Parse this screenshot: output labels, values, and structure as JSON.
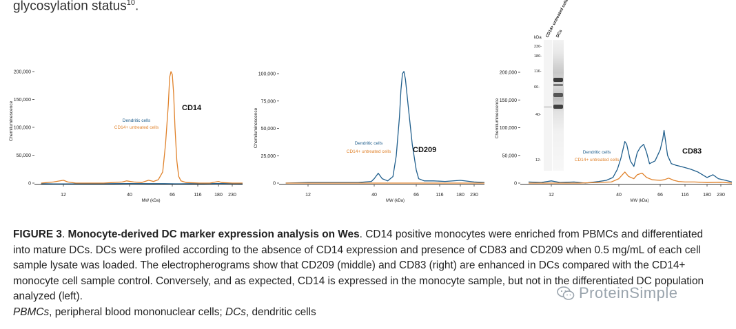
{
  "lead_text": {
    "text": "glycosylation status",
    "ref": "10",
    "tail": "."
  },
  "caption": {
    "fig_label": "FIGURE 3",
    "sep": ". ",
    "title": "Monocyte-derived DC marker expression analysis on Wes",
    "body": ". CD14 positive monocytes were enriched from PBMCs and differentiated into mature DCs. DCs were profiled according to the absence of CD14 expression and presence of CD83 and CD209 when 0.5 mg/mL of each cell sample lysate was loaded. The electropherograms show that CD209 (middle) and CD83 (right) are enhanced in DCs compared with the CD14+ monocyte cell sample control. Conversely, and as expected, CD14 is expressed in the monocyte sample, but not in the differentiated DC population analyzed (left).",
    "abbr1_term": "PBMCs",
    "abbr1_def": ", peripheral blood mononuclear cells; ",
    "abbr2_term": "DCs",
    "abbr2_def": ", dendritic cells"
  },
  "watermark": {
    "text": "ProteinSimple",
    "icon": "wechat-icon"
  },
  "colors": {
    "dendritic": "#1f5e8c",
    "cd14_untreated": "#e0822b",
    "axis": "#333333"
  },
  "chart_data": [
    {
      "type": "line",
      "ylabel": "Chemiluminescence",
      "xlabel": "MW (kDa)",
      "xticks": [
        "12",
        "40",
        "66",
        "116",
        "180",
        "230"
      ],
      "yticks": [
        "0",
        "50,000",
        "100,000",
        "150,000",
        "200,000"
      ],
      "ylim": [
        0,
        210000
      ],
      "marker_label": "CD14",
      "legend": [
        "Dendritic cells",
        "CD14+ untreated cells"
      ],
      "series": [
        {
          "name": "Dendritic cells",
          "color": "#1f5e8c",
          "points": [
            [
              8,
              -1000
            ],
            [
              10,
              -1500
            ],
            [
              12,
              -1500
            ],
            [
              20,
              -1200
            ],
            [
              30,
              -1000
            ],
            [
              40,
              -800
            ],
            [
              50,
              -1000
            ],
            [
              60,
              -1000
            ],
            [
              70,
              -1200
            ],
            [
              80,
              -1200
            ],
            [
              100,
              -1000
            ],
            [
              130,
              -1000
            ],
            [
              180,
              -800
            ],
            [
              230,
              -900
            ],
            [
              280,
              -1000
            ]
          ]
        },
        {
          "name": "CD14+ untreated cells",
          "color": "#e0822b",
          "points": [
            [
              8,
              0
            ],
            [
              10,
              2000
            ],
            [
              12,
              5000
            ],
            [
              13,
              2000
            ],
            [
              15,
              0
            ],
            [
              25,
              0
            ],
            [
              35,
              2000
            ],
            [
              38,
              4000
            ],
            [
              42,
              2000
            ],
            [
              46,
              1000
            ],
            [
              50,
              5000
            ],
            [
              53,
              3000
            ],
            [
              56,
              6000
            ],
            [
              59,
              20000
            ],
            [
              61,
              70000
            ],
            [
              63,
              140000
            ],
            [
              64,
              190000
            ],
            [
              65,
              200000
            ],
            [
              66,
              195000
            ],
            [
              68,
              160000
            ],
            [
              70,
              100000
            ],
            [
              73,
              40000
            ],
            [
              76,
              12000
            ],
            [
              80,
              4000
            ],
            [
              90,
              1000
            ],
            [
              120,
              0
            ],
            [
              150,
              0
            ],
            [
              180,
              3000
            ],
            [
              190,
              1000
            ],
            [
              230,
              0
            ],
            [
              280,
              0
            ]
          ]
        }
      ]
    },
    {
      "type": "line",
      "ylabel": "Chemiluminescence",
      "xlabel": "MW (kDa)",
      "xticks": [
        "12",
        "40",
        "66",
        "116",
        "180",
        "230"
      ],
      "yticks": [
        "0",
        "25,000",
        "50,000",
        "75,000",
        "100,000"
      ],
      "ylim": [
        0,
        110000
      ],
      "marker_label": "CD209",
      "legend": [
        "Dendritic cells",
        "CD14+ untreated cells"
      ],
      "series": [
        {
          "name": "Dendritic cells",
          "color": "#1f5e8c",
          "points": [
            [
              8,
              0
            ],
            [
              12,
              500
            ],
            [
              20,
              500
            ],
            [
              30,
              500
            ],
            [
              38,
              1500
            ],
            [
              40,
              4000
            ],
            [
              42,
              9000
            ],
            [
              44,
              4000
            ],
            [
              47,
              2000
            ],
            [
              50,
              6000
            ],
            [
              52,
              25000
            ],
            [
              54,
              60000
            ],
            [
              55,
              85000
            ],
            [
              56,
              100000
            ],
            [
              57,
              102000
            ],
            [
              58,
              95000
            ],
            [
              60,
              70000
            ],
            [
              63,
              35000
            ],
            [
              66,
              12000
            ],
            [
              70,
              4000
            ],
            [
              80,
              2000
            ],
            [
              100,
              2000
            ],
            [
              130,
              1500
            ],
            [
              180,
              2500
            ],
            [
              230,
              1000
            ],
            [
              280,
              500
            ]
          ]
        },
        {
          "name": "CD14+ untreated cells",
          "color": "#e0822b",
          "points": [
            [
              8,
              0
            ],
            [
              20,
              0
            ],
            [
              40,
              0
            ],
            [
              60,
              0
            ],
            [
              100,
              0
            ],
            [
              180,
              0
            ],
            [
              280,
              0
            ]
          ]
        }
      ]
    },
    {
      "type": "line",
      "ylabel": "Chemiluminescence",
      "xlabel": "MW (kDa)",
      "xticks": [
        "12",
        "40",
        "66",
        "116",
        "180",
        "230"
      ],
      "yticks": [
        "0",
        "50,000",
        "100,000",
        "150,000",
        "200,000"
      ],
      "ylim": [
        0,
        210000
      ],
      "marker_label": "CD83",
      "legend": [
        "Dendritic cells",
        "CD14+ untreated cells"
      ],
      "series": [
        {
          "name": "Dendritic cells",
          "color": "#1f5e8c",
          "points": [
            [
              8,
              2000
            ],
            [
              10,
              1000
            ],
            [
              12,
              4000
            ],
            [
              14,
              1000
            ],
            [
              18,
              2000
            ],
            [
              22,
              0
            ],
            [
              28,
              3000
            ],
            [
              32,
              5000
            ],
            [
              36,
              10000
            ],
            [
              39,
              25000
            ],
            [
              41,
              45000
            ],
            [
              43,
              75000
            ],
            [
              44,
              70000
            ],
            [
              46,
              40000
            ],
            [
              48,
              30000
            ],
            [
              50,
              55000
            ],
            [
              52,
              65000
            ],
            [
              54,
              70000
            ],
            [
              56,
              55000
            ],
            [
              58,
              35000
            ],
            [
              62,
              40000
            ],
            [
              66,
              60000
            ],
            [
              70,
              80000
            ],
            [
              72,
              95000
            ],
            [
              74,
              80000
            ],
            [
              78,
              50000
            ],
            [
              85,
              35000
            ],
            [
              95,
              32000
            ],
            [
              105,
              30000
            ],
            [
              116,
              28000
            ],
            [
              130,
              25000
            ],
            [
              150,
              20000
            ],
            [
              180,
              10000
            ],
            [
              200,
              15000
            ],
            [
              220,
              8000
            ],
            [
              250,
              5000
            ],
            [
              280,
              2000
            ]
          ]
        },
        {
          "name": "CD14+ untreated cells",
          "color": "#e0822b",
          "points": [
            [
              8,
              0
            ],
            [
              20,
              0
            ],
            [
              35,
              2000
            ],
            [
              40,
              8000
            ],
            [
              43,
              20000
            ],
            [
              45,
              12000
            ],
            [
              48,
              8000
            ],
            [
              50,
              15000
            ],
            [
              53,
              18000
            ],
            [
              56,
              10000
            ],
            [
              60,
              6000
            ],
            [
              66,
              5000
            ],
            [
              72,
              6000
            ],
            [
              80,
              9000
            ],
            [
              90,
              5000
            ],
            [
              100,
              3000
            ],
            [
              116,
              2000
            ],
            [
              140,
              2000
            ],
            [
              180,
              1000
            ],
            [
              230,
              1500
            ],
            [
              280,
              0
            ]
          ]
        }
      ]
    }
  ],
  "blot": {
    "axis_label": "kDa",
    "lane_labels": [
      "CD14+ untreated cells",
      "DCs"
    ],
    "ticks": [
      "230-",
      "180-",
      "116-",
      "66-",
      "40-",
      "12-"
    ]
  }
}
